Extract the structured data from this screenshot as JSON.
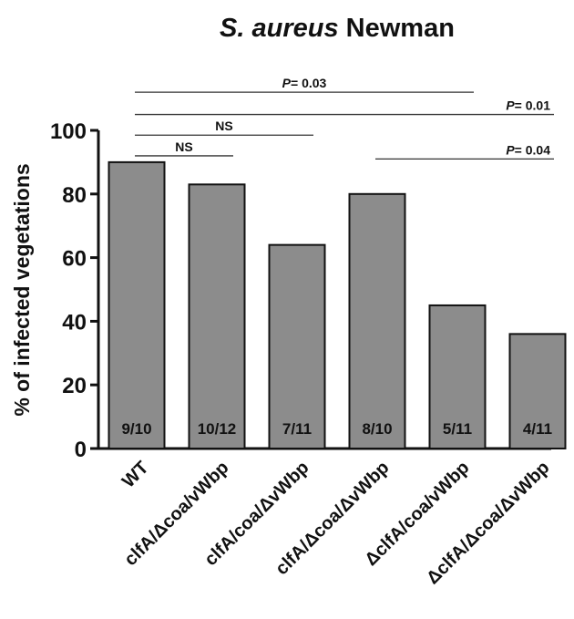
{
  "chart_data": {
    "type": "bar",
    "title_italic": "S. aureus",
    "title_rest": " Newman",
    "ylabel": "% of infected vegetations",
    "xlabel": "",
    "ylim": [
      0,
      100
    ],
    "yticks": [
      0,
      20,
      40,
      60,
      80,
      100
    ],
    "grid": false,
    "legend": "none",
    "bar_color": "#8c8c8c",
    "categories": [
      "WT",
      "clfA/Δcoa/vWbp",
      "clfA/coa/ΔvWbp",
      "clfA/Δcoa/ΔvWbp",
      "ΔclfA/coa/vWbp",
      "ΔclfA/Δcoa/ΔvWbp"
    ],
    "values": [
      90,
      83,
      64,
      80,
      45,
      36
    ],
    "bar_labels": [
      "9/10",
      "10/12",
      "7/11",
      "8/10",
      "5/11",
      "4/11"
    ],
    "comparisons": [
      {
        "from": 0,
        "to": 1,
        "label_p": "",
        "label_value": "NS",
        "level": 92
      },
      {
        "from": 0,
        "to": 2,
        "label_p": "",
        "label_value": "NS",
        "level": 98.5
      },
      {
        "from": 0,
        "to": 4,
        "label_p": "P",
        "label_value": "= 0.03",
        "level": 112
      },
      {
        "from": 0,
        "to": 5,
        "label_p": "P",
        "label_value": "= 0.01",
        "level": 105
      },
      {
        "from": 3,
        "to": 5,
        "label_p": "P",
        "label_value": "= 0.04",
        "level": 91
      }
    ]
  }
}
